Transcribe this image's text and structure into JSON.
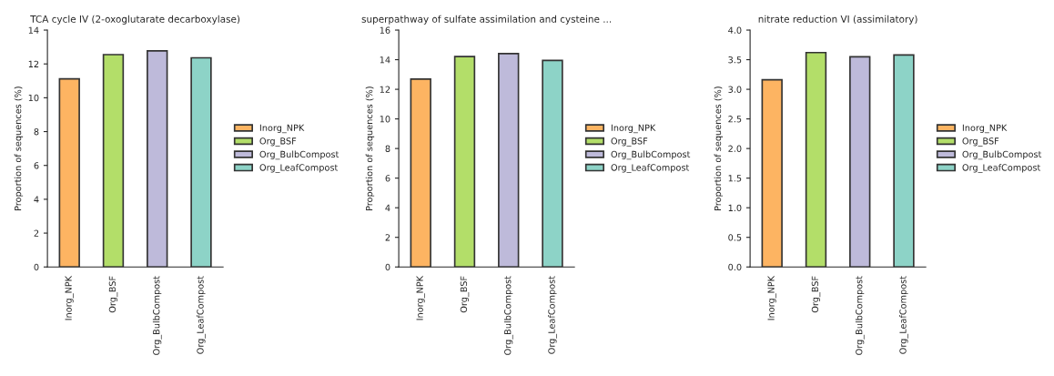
{
  "chart_data": [
    {
      "type": "bar",
      "title": "TCA cycle IV (2-oxoglutarate decarboxylase)",
      "ylabel": "Proportion of sequences (%)",
      "categories": [
        "Inorg_NPK",
        "Org_BSF",
        "Org_BulbCompost",
        "Org_LeafCompost"
      ],
      "series": [
        {
          "name": "Inorg_NPK",
          "color": "#fdb462",
          "values": [
            11.12,
            null,
            null,
            null
          ]
        },
        {
          "name": "Org_BSF",
          "color": "#b3de69",
          "values": [
            null,
            12.55,
            null,
            null
          ]
        },
        {
          "name": "Org_BulbCompost",
          "color": "#bebada",
          "values": [
            null,
            null,
            12.77,
            null
          ]
        },
        {
          "name": "Org_LeafCompost",
          "color": "#8dd3c7",
          "values": [
            null,
            null,
            null,
            12.36
          ]
        }
      ],
      "ylim": [
        0,
        14
      ],
      "yticks": [
        0,
        2,
        4,
        6,
        8,
        10,
        12,
        14
      ],
      "legend": "right"
    },
    {
      "type": "bar",
      "title": "superpathway of sulfate assimilation and cysteine ...",
      "ylabel": "Proportion of sequences (%)",
      "categories": [
        "Inorg_NPK",
        "Org_BSF",
        "Org_BulbCompost",
        "Org_LeafCompost"
      ],
      "series": [
        {
          "name": "Inorg_NPK",
          "color": "#fdb462",
          "values": [
            12.69,
            null,
            null,
            null
          ]
        },
        {
          "name": "Org_BSF",
          "color": "#b3de69",
          "values": [
            null,
            14.21,
            null,
            null
          ]
        },
        {
          "name": "Org_BulbCompost",
          "color": "#bebada",
          "values": [
            null,
            null,
            14.41,
            null
          ]
        },
        {
          "name": "Org_LeafCompost",
          "color": "#8dd3c7",
          "values": [
            null,
            null,
            null,
            13.95
          ]
        }
      ],
      "ylim": [
        0,
        16
      ],
      "yticks": [
        0,
        2,
        4,
        6,
        8,
        10,
        12,
        14,
        16
      ],
      "legend": "right"
    },
    {
      "type": "bar",
      "title": "nitrate reduction VI (assimilatory)",
      "ylabel": "Proportion of sequences (%)",
      "categories": [
        "Inorg_NPK",
        "Org_BSF",
        "Org_BulbCompost",
        "Org_LeafCompost"
      ],
      "series": [
        {
          "name": "Inorg_NPK",
          "color": "#fdb462",
          "values": [
            3.16,
            null,
            null,
            null
          ]
        },
        {
          "name": "Org_BSF",
          "color": "#b3de69",
          "values": [
            null,
            3.62,
            null,
            null
          ]
        },
        {
          "name": "Org_BulbCompost",
          "color": "#bebada",
          "values": [
            null,
            null,
            3.55,
            null
          ]
        },
        {
          "name": "Org_LeafCompost",
          "color": "#8dd3c7",
          "values": [
            null,
            null,
            null,
            3.58
          ]
        }
      ],
      "ylim": [
        0,
        4.0
      ],
      "yticks": [
        {
          "value": 0,
          "label": "0.0"
        },
        0.5,
        {
          "value": 1,
          "label": "1.0"
        },
        1.5,
        {
          "value": 2,
          "label": "2.0"
        },
        2.5,
        {
          "value": 3,
          "label": "3.0"
        },
        3.5,
        {
          "value": 4,
          "label": "4.0"
        }
      ],
      "legend": "right"
    }
  ]
}
